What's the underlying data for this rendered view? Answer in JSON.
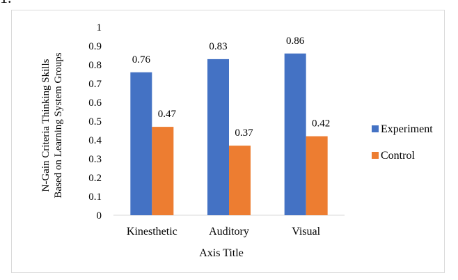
{
  "page": {
    "top_fragment": "1."
  },
  "chart_data": {
    "type": "bar",
    "title": "",
    "xlabel": "Axis Title",
    "ylabel_lines": [
      "N-Gain Criteria Thinking Skills",
      "Based on Learning System Groups"
    ],
    "categories": [
      "Kinesthetic",
      "Auditory",
      "Visual"
    ],
    "series": [
      {
        "name": "Experiment",
        "color": "#4472c4",
        "values": [
          0.76,
          0.83,
          0.86
        ],
        "labels": [
          "0.76",
          "0.83",
          "0.86"
        ]
      },
      {
        "name": "Control",
        "color": "#ed7d31",
        "values": [
          0.47,
          0.37,
          0.42
        ],
        "labels": [
          "0.47",
          "0.37",
          "0.42"
        ]
      }
    ],
    "ylim": [
      0,
      1
    ],
    "yticks": [
      "0",
      "0.1",
      "0.2",
      "0.3",
      "0.4",
      "0.5",
      "0.6",
      "0.7",
      "0.8",
      "0.9",
      "1"
    ],
    "grid": false,
    "legend": "right"
  }
}
